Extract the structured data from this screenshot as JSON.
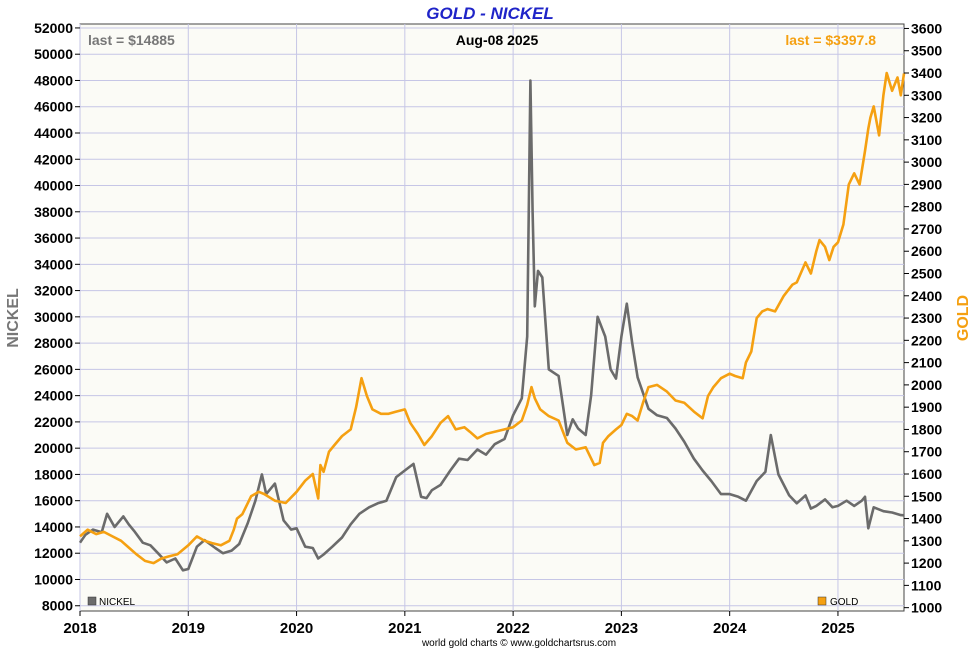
{
  "chart_data": {
    "type": "line",
    "title": "GOLD - NICKEL",
    "date_label": "Aug-08  2025",
    "footer": "world gold charts © www.goldchartsrus.com",
    "x_tick_labels": [
      "2018",
      "2019",
      "2020",
      "2021",
      "2022",
      "2023",
      "2024",
      "2025"
    ],
    "x_range": [
      2018.0,
      2025.61
    ],
    "left_axis": {
      "label": "NICKEL",
      "range": [
        7600,
        52300
      ],
      "ticks": [
        8000,
        10000,
        12000,
        14000,
        16000,
        18000,
        20000,
        22000,
        24000,
        26000,
        28000,
        30000,
        32000,
        34000,
        36000,
        38000,
        40000,
        42000,
        44000,
        46000,
        48000,
        50000,
        52000
      ]
    },
    "right_axis": {
      "label": "GOLD",
      "range": [
        985,
        3620
      ],
      "ticks": [
        1000,
        1100,
        1200,
        1300,
        1400,
        1500,
        1600,
        1700,
        1800,
        1900,
        2000,
        2100,
        2200,
        2300,
        2400,
        2500,
        2600,
        2700,
        2800,
        2900,
        3000,
        3100,
        3200,
        3300,
        3400,
        3500,
        3600
      ]
    },
    "grid": true,
    "series": [
      {
        "name": "NICKEL",
        "axis": "left",
        "color": "#6b6b6b",
        "last_text": "last = $14885",
        "legend_position": "bottom-left",
        "x": [
          2018.0,
          2018.05,
          2018.12,
          2018.2,
          2018.25,
          2018.32,
          2018.4,
          2018.45,
          2018.5,
          2018.58,
          2018.65,
          2018.72,
          2018.8,
          2018.88,
          2018.95,
          2019.0,
          2019.08,
          2019.15,
          2019.25,
          2019.32,
          2019.4,
          2019.47,
          2019.55,
          2019.62,
          2019.68,
          2019.72,
          2019.8,
          2019.88,
          2019.95,
          2020.0,
          2020.08,
          2020.15,
          2020.2,
          2020.25,
          2020.33,
          2020.42,
          2020.5,
          2020.58,
          2020.67,
          2020.75,
          2020.83,
          2020.92,
          2021.0,
          2021.08,
          2021.15,
          2021.2,
          2021.25,
          2021.33,
          2021.42,
          2021.5,
          2021.58,
          2021.67,
          2021.75,
          2021.83,
          2021.92,
          2022.0,
          2022.08,
          2022.13,
          2022.16,
          2022.18,
          2022.2,
          2022.23,
          2022.27,
          2022.33,
          2022.42,
          2022.5,
          2022.55,
          2022.6,
          2022.67,
          2022.72,
          2022.78,
          2022.85,
          2022.9,
          2022.95,
          2023.0,
          2023.05,
          2023.1,
          2023.15,
          2023.25,
          2023.33,
          2023.42,
          2023.5,
          2023.58,
          2023.67,
          2023.75,
          2023.83,
          2023.92,
          2024.0,
          2024.08,
          2024.15,
          2024.25,
          2024.33,
          2024.38,
          2024.45,
          2024.55,
          2024.62,
          2024.7,
          2024.75,
          2024.8,
          2024.88,
          2024.95,
          2025.0,
          2025.08,
          2025.15,
          2025.22,
          2025.25,
          2025.28,
          2025.33,
          2025.42,
          2025.5,
          2025.58,
          2025.61
        ],
        "y": [
          12800,
          13400,
          13800,
          13600,
          15000,
          14000,
          14800,
          14200,
          13700,
          12800,
          12600,
          12000,
          11300,
          11600,
          10700,
          10800,
          12500,
          13000,
          12400,
          12000,
          12200,
          12700,
          14300,
          16000,
          18000,
          16500,
          17300,
          14500,
          13800,
          13900,
          12500,
          12400,
          11600,
          11900,
          12500,
          13200,
          14200,
          15000,
          15500,
          15800,
          16000,
          17800,
          18300,
          18800,
          16300,
          16200,
          16800,
          17200,
          18300,
          19200,
          19100,
          19900,
          19500,
          20300,
          20700,
          22500,
          23800,
          28500,
          48000,
          38000,
          30800,
          33500,
          33000,
          26000,
          25500,
          21000,
          22200,
          21500,
          21000,
          24000,
          30000,
          28500,
          26000,
          25300,
          28500,
          31000,
          28000,
          25400,
          23000,
          22500,
          22300,
          21500,
          20500,
          19200,
          18300,
          17500,
          16500,
          16500,
          16300,
          16000,
          17500,
          18200,
          21000,
          18000,
          16400,
          15800,
          16400,
          15400,
          15600,
          16100,
          15500,
          15600,
          16000,
          15600,
          16000,
          16300,
          13900,
          15500,
          15200,
          15100,
          14900,
          14885
        ]
      },
      {
        "name": "GOLD",
        "axis": "right",
        "color": "#f5a011",
        "last_text": "last = $3397.8",
        "legend_position": "bottom-right",
        "x": [
          2018.0,
          2018.07,
          2018.15,
          2018.22,
          2018.3,
          2018.38,
          2018.45,
          2018.52,
          2018.6,
          2018.68,
          2018.75,
          2018.82,
          2018.9,
          2019.0,
          2019.08,
          2019.15,
          2019.22,
          2019.3,
          2019.38,
          2019.42,
          2019.45,
          2019.5,
          2019.58,
          2019.65,
          2019.7,
          2019.8,
          2019.9,
          2020.0,
          2020.08,
          2020.15,
          2020.2,
          2020.22,
          2020.25,
          2020.3,
          2020.35,
          2020.42,
          2020.5,
          2020.55,
          2020.6,
          2020.65,
          2020.7,
          2020.78,
          2020.85,
          2020.92,
          2021.0,
          2021.05,
          2021.12,
          2021.18,
          2021.25,
          2021.33,
          2021.4,
          2021.47,
          2021.55,
          2021.6,
          2021.67,
          2021.75,
          2021.83,
          2021.92,
          2022.0,
          2022.08,
          2022.13,
          2022.17,
          2022.2,
          2022.25,
          2022.33,
          2022.42,
          2022.5,
          2022.58,
          2022.67,
          2022.75,
          2022.8,
          2022.83,
          2022.88,
          2022.95,
          2023.0,
          2023.05,
          2023.1,
          2023.15,
          2023.2,
          2023.25,
          2023.33,
          2023.42,
          2023.5,
          2023.58,
          2023.67,
          2023.75,
          2023.8,
          2023.85,
          2023.92,
          2024.0,
          2024.05,
          2024.12,
          2024.15,
          2024.2,
          2024.25,
          2024.3,
          2024.35,
          2024.42,
          2024.5,
          2024.58,
          2024.62,
          2024.7,
          2024.75,
          2024.8,
          2024.83,
          2024.88,
          2024.92,
          2024.96,
          2025.0,
          2025.05,
          2025.1,
          2025.15,
          2025.2,
          2025.25,
          2025.28,
          2025.3,
          2025.33,
          2025.38,
          2025.42,
          2025.45,
          2025.5,
          2025.55,
          2025.58,
          2025.61
        ],
        "y": [
          1320,
          1350,
          1330,
          1340,
          1320,
          1300,
          1270,
          1240,
          1210,
          1200,
          1220,
          1230,
          1240,
          1280,
          1320,
          1300,
          1290,
          1280,
          1300,
          1350,
          1400,
          1420,
          1500,
          1520,
          1510,
          1480,
          1470,
          1520,
          1570,
          1600,
          1490,
          1640,
          1610,
          1700,
          1730,
          1770,
          1800,
          1900,
          2030,
          1950,
          1890,
          1870,
          1870,
          1880,
          1890,
          1830,
          1780,
          1730,
          1770,
          1830,
          1860,
          1800,
          1810,
          1790,
          1760,
          1780,
          1790,
          1800,
          1810,
          1840,
          1910,
          1990,
          1940,
          1890,
          1860,
          1840,
          1740,
          1710,
          1720,
          1640,
          1650,
          1740,
          1770,
          1800,
          1820,
          1870,
          1860,
          1840,
          1920,
          1990,
          2000,
          1970,
          1930,
          1920,
          1880,
          1850,
          1950,
          1990,
          2030,
          2050,
          2040,
          2030,
          2100,
          2150,
          2300,
          2330,
          2340,
          2330,
          2400,
          2450,
          2460,
          2550,
          2500,
          2600,
          2650,
          2620,
          2560,
          2620,
          2640,
          2720,
          2900,
          2950,
          2900,
          3050,
          3150,
          3200,
          3250,
          3120,
          3300,
          3400,
          3320,
          3380,
          3300,
          3397.8
        ]
      }
    ]
  }
}
